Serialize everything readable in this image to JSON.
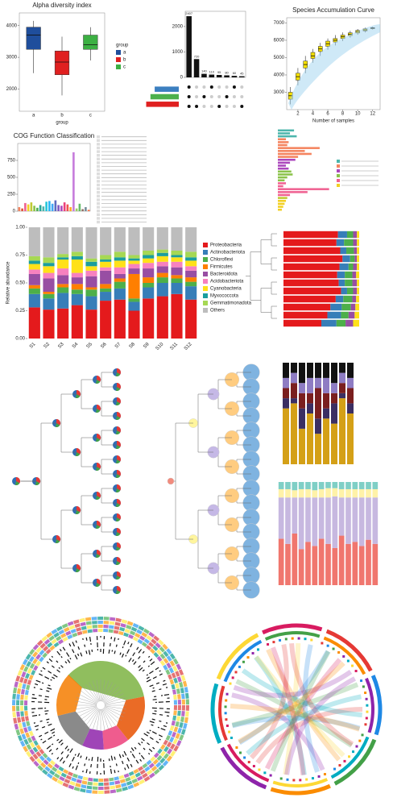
{
  "chart_data": [
    {
      "type": "box",
      "title": "Alpha diversity index",
      "x_label": "group",
      "legend_title": "group",
      "categories": [
        "a",
        "b",
        "c"
      ],
      "colors": [
        "#1f4e9c",
        "#e02020",
        "#3cb043"
      ],
      "values": [
        [
          2500,
          3250,
          3700,
          3950,
          4150
        ],
        [
          1800,
          2450,
          2850,
          3200,
          3650
        ],
        [
          2900,
          3250,
          3400,
          3700,
          3950
        ]
      ],
      "ylim": [
        1300,
        4400
      ],
      "yticks": [
        2000,
        3000,
        4000
      ]
    },
    {
      "type": "bar",
      "values": [
        2407,
        720,
        140,
        110,
        95,
        80,
        60,
        45
      ],
      "color": "#111111",
      "data_labels": true,
      "ylim": [
        0,
        2600
      ],
      "yticks": [
        0,
        1000,
        2000
      ]
    },
    {
      "type": "hbar",
      "values": [
        1700,
        2000,
        2300
      ],
      "colors": [
        "#3c7fc0",
        "#4cb04c",
        "#e02020"
      ],
      "xlim": [
        0,
        2500
      ],
      "bars_from": "right"
    },
    {
      "type": "box",
      "title": "Species Accumulation Curve",
      "x_label": "Number of samples",
      "color": "#f5e000",
      "x": [
        1,
        2,
        3,
        4,
        5,
        6,
        7,
        8,
        9,
        10,
        11,
        12
      ],
      "values": [
        [
          2300,
          2600,
          2800,
          3000,
          3300
        ],
        [
          3400,
          3700,
          3900,
          4100,
          4400
        ],
        [
          4100,
          4400,
          4600,
          4800,
          5100
        ],
        [
          4700,
          4950,
          5100,
          5300,
          5500
        ],
        [
          5100,
          5350,
          5500,
          5650,
          5850
        ],
        [
          5450,
          5650,
          5800,
          5950,
          6100
        ],
        [
          5700,
          5900,
          6000,
          6100,
          6300
        ],
        [
          5950,
          6100,
          6200,
          6300,
          6450
        ],
        [
          6150,
          6270,
          6350,
          6430,
          6550
        ],
        [
          6320,
          6420,
          6500,
          6570,
          6650
        ],
        [
          6450,
          6540,
          6600,
          6660,
          6730
        ],
        [
          6620,
          6670,
          6700,
          6730,
          6780
        ]
      ],
      "xlim": [
        0.5,
        13
      ],
      "xticks": [
        2,
        4,
        6,
        8,
        10,
        12
      ],
      "ylim": [
        2000,
        7300
      ],
      "yticks": [
        3000,
        4000,
        5000,
        6000,
        7000
      ]
    },
    {
      "type": "bar",
      "title": "COG Function Classification",
      "values": [
        60,
        40,
        120,
        100,
        130,
        80,
        50,
        90,
        70,
        140,
        150,
        110,
        160,
        90,
        80,
        130,
        100,
        60,
        870,
        40,
        110,
        30,
        60,
        20
      ],
      "colors": [
        "#f4845f",
        "#e0523a",
        "#f06292",
        "#f2d024",
        "#c0ca33",
        "#8bc34a",
        "#4caf50",
        "#26a69a",
        "#4db6ac",
        "#26c6da",
        "#29b6f6",
        "#42a5f5",
        "#5c6bc0",
        "#7e57c2",
        "#ab47bc",
        "#ec407a",
        "#ef5350",
        "#ffa726",
        "#c77ddc",
        "#9ccc65",
        "#66bb6a",
        "#8d6e63",
        "#78909c",
        "#ff7043"
      ],
      "ylim": [
        0,
        1000
      ],
      "yticks": [
        0,
        250,
        500,
        750
      ]
    },
    {
      "type": "hbar",
      "values": [
        120,
        90,
        140,
        60,
        80,
        70,
        310,
        200,
        250,
        150,
        130,
        90,
        60,
        80,
        100,
        110,
        70,
        50,
        60,
        40,
        380,
        220,
        90,
        70,
        60,
        50,
        40,
        30
      ],
      "colors": [
        "#4db6ac",
        "#4db6ac",
        "#4db6ac",
        "#f4845f",
        "#f4845f",
        "#f4845f",
        "#f4845f",
        "#f4845f",
        "#f4845f",
        "#f4845f",
        "#ab47bc",
        "#ab47bc",
        "#ab47bc",
        "#ab47bc",
        "#8bc34a",
        "#8bc34a",
        "#8bc34a",
        "#8bc34a",
        "#f06292",
        "#f06292",
        "#f06292",
        "#f06292",
        "#f06292",
        "#c0ca33",
        "#f2d024",
        "#f2d024",
        "#f2d024",
        "#f2d024"
      ],
      "xlim": [
        0,
        400
      ],
      "bars_from": "left"
    },
    {
      "type": "stacked",
      "y_label": "Relative abundance",
      "categories": [
        "S1",
        "S2",
        "S3",
        "S4",
        "S5",
        "S6",
        "S7",
        "S8",
        "S9",
        "S10",
        "S11",
        "S12"
      ],
      "series": [
        {
          "name": "Proteobacteria",
          "color": "#e41a1c",
          "values": [
            0.28,
            0.26,
            0.27,
            0.3,
            0.26,
            0.34,
            0.35,
            0.25,
            0.36,
            0.38,
            0.4,
            0.35
          ]
        },
        {
          "name": "Actinobacteriota",
          "color": "#377eb8",
          "values": [
            0.12,
            0.1,
            0.14,
            0.1,
            0.12,
            0.08,
            0.1,
            0.08,
            0.1,
            0.12,
            0.1,
            0.12
          ]
        },
        {
          "name": "Chloroflexi",
          "color": "#4daf4a",
          "values": [
            0.05,
            0.04,
            0.05,
            0.04,
            0.06,
            0.03,
            0.06,
            0.03,
            0.04,
            0.05,
            0.04,
            0.04
          ]
        },
        {
          "name": "Firmicutes",
          "color": "#ff7f00",
          "values": [
            0.03,
            0.02,
            0.03,
            0.05,
            0.02,
            0.04,
            0.03,
            0.22,
            0.05,
            0.04,
            0.03,
            0.04
          ]
        },
        {
          "name": "Bacteroidota",
          "color": "#984ea3",
          "values": [
            0.1,
            0.12,
            0.08,
            0.06,
            0.1,
            0.12,
            0.04,
            0.05,
            0.08,
            0.06,
            0.07,
            0.06
          ]
        },
        {
          "name": "Acidobacteriota",
          "color": "#f781bf",
          "values": [
            0.04,
            0.05,
            0.06,
            0.04,
            0.05,
            0.03,
            0.06,
            0.04,
            0.05,
            0.04,
            0.05,
            0.04
          ]
        },
        {
          "name": "Cyanobacteria",
          "color": "#ffe119",
          "values": [
            0.05,
            0.06,
            0.08,
            0.12,
            0.04,
            0.05,
            0.06,
            0.03,
            0.04,
            0.05,
            0.04,
            0.05
          ]
        },
        {
          "name": "Myxococcota",
          "color": "#1b9e9e",
          "values": [
            0.03,
            0.03,
            0.02,
            0.03,
            0.04,
            0.02,
            0.03,
            0.02,
            0.03,
            0.03,
            0.02,
            0.03
          ]
        },
        {
          "name": "Gemmatimonadota",
          "color": "#a6d854",
          "values": [
            0.04,
            0.05,
            0.03,
            0.04,
            0.03,
            0.04,
            0.05,
            0.03,
            0.04,
            0.03,
            0.04,
            0.05
          ]
        },
        {
          "name": "Others",
          "color": "#bdbdbd",
          "values": [
            0.26,
            0.27,
            0.24,
            0.22,
            0.28,
            0.25,
            0.22,
            0.25,
            0.21,
            0.2,
            0.21,
            0.22
          ]
        }
      ],
      "ylim": [
        0,
        1
      ],
      "yticks": [
        {
          "value": 0,
          "label": "0.00"
        },
        {
          "value": 0.25,
          "label": "0.25"
        },
        {
          "value": 0.5,
          "label": "0.50"
        },
        {
          "value": 0.75,
          "label": "0.75"
        },
        {
          "value": 1,
          "label": "1.00"
        }
      ]
    },
    {
      "type": "stacked",
      "orientation": "horizontal",
      "series": [
        {
          "color": "#e41a1c",
          "values": [
            0.72,
            0.7,
            0.75,
            0.78,
            0.74,
            0.71,
            0.73,
            0.76,
            0.69,
            0.62,
            0.58,
            0.5
          ]
        },
        {
          "color": "#377eb8",
          "values": [
            0.12,
            0.1,
            0.08,
            0.1,
            0.12,
            0.1,
            0.08,
            0.08,
            0.1,
            0.15,
            0.18,
            0.2
          ]
        },
        {
          "color": "#4daf4a",
          "values": [
            0.08,
            0.12,
            0.1,
            0.06,
            0.06,
            0.1,
            0.1,
            0.08,
            0.12,
            0.12,
            0.1,
            0.12
          ]
        },
        {
          "color": "#984ea3",
          "values": [
            0.05,
            0.05,
            0.04,
            0.03,
            0.05,
            0.05,
            0.06,
            0.05,
            0.05,
            0.06,
            0.08,
            0.1
          ]
        },
        {
          "color": "#ffe119",
          "values": [
            0.03,
            0.03,
            0.03,
            0.03,
            0.03,
            0.04,
            0.03,
            0.03,
            0.04,
            0.05,
            0.06,
            0.08
          ]
        }
      ],
      "xlim": [
        0,
        1
      ]
    },
    {
      "type": "stacked",
      "series": [
        {
          "color": "#d4a017",
          "values": [
            0.55,
            0.6,
            0.35,
            0.5,
            0.3,
            0.45,
            0.4,
            0.65,
            0.5
          ]
        },
        {
          "color": "#3b2f63",
          "values": [
            0.1,
            0.05,
            0.2,
            0.1,
            0.15,
            0.1,
            0.2,
            0.05,
            0.1
          ]
        },
        {
          "color": "#7a1f1f",
          "values": [
            0.1,
            0.15,
            0.15,
            0.1,
            0.3,
            0.15,
            0.1,
            0.1,
            0.15
          ]
        },
        {
          "color": "#8e7cc3",
          "values": [
            0.1,
            0.1,
            0.1,
            0.15,
            0.1,
            0.15,
            0.1,
            0.1,
            0.1
          ]
        },
        {
          "color": "#111111",
          "values": [
            0.15,
            0.1,
            0.2,
            0.15,
            0.15,
            0.15,
            0.2,
            0.1,
            0.15
          ]
        }
      ],
      "ylim": [
        0,
        1
      ]
    },
    {
      "type": "stacked",
      "series": [
        {
          "color": "#f0766e",
          "values": [
            0.45,
            0.4,
            0.5,
            0.35,
            0.42,
            0.38,
            0.45,
            0.4,
            0.36,
            0.48,
            0.4,
            0.42,
            0.38,
            0.44,
            0.4
          ]
        },
        {
          "color": "#c7b8e0",
          "values": [
            0.4,
            0.45,
            0.35,
            0.5,
            0.43,
            0.47,
            0.4,
            0.45,
            0.5,
            0.37,
            0.45,
            0.43,
            0.47,
            0.41,
            0.45
          ]
        },
        {
          "color": "#fff2a8",
          "values": [
            0.08,
            0.08,
            0.07,
            0.08,
            0.08,
            0.07,
            0.08,
            0.09,
            0.08,
            0.08,
            0.08,
            0.08,
            0.08,
            0.08,
            0.08
          ]
        },
        {
          "color": "#7fcfc6",
          "values": [
            0.07,
            0.07,
            0.08,
            0.07,
            0.07,
            0.08,
            0.07,
            0.06,
            0.06,
            0.07,
            0.07,
            0.07,
            0.07,
            0.07,
            0.07
          ]
        }
      ],
      "ylim": [
        0,
        1
      ]
    }
  ]
}
